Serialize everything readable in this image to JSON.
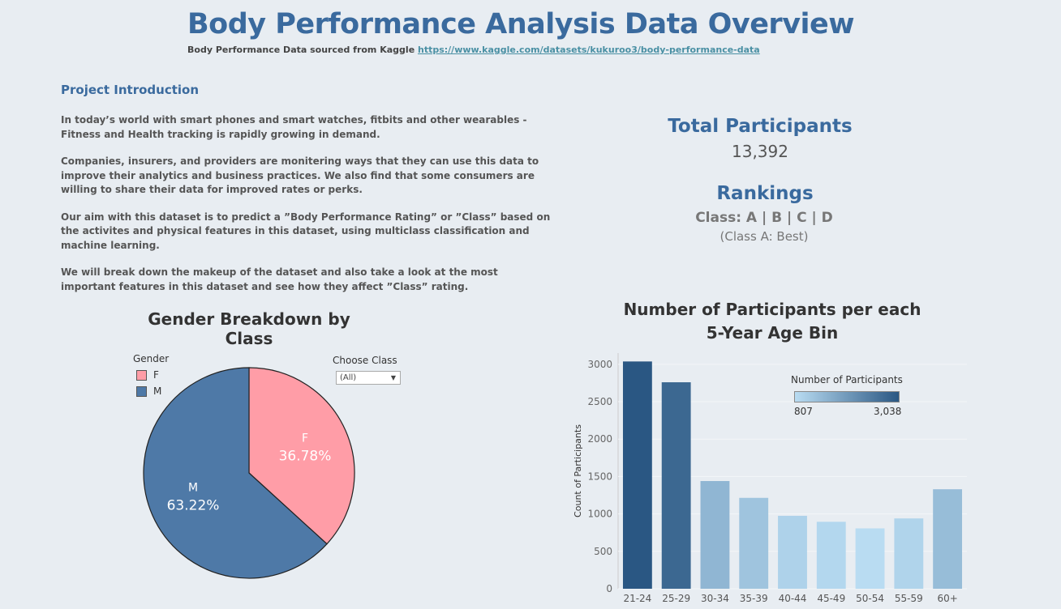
{
  "header": {
    "title": "Body Performance Analysis Data Overview",
    "source_prefix": "Body Performance Data sourced from Kaggle ",
    "source_link": "https://www.kaggle.com/datasets/kukuroo3/body-performance-data"
  },
  "intro": {
    "heading": "Project Introduction",
    "paragraphs": [
      "In today’s world with smart phones and smart watches, fitbits and other wearables - Fitness and Health tracking is rapidly growing in demand.",
      "Companies, insurers, and providers are monitering ways that they can use this data to improve their analytics and business practices. We also find that some consumers are willing to share their data for improved rates or perks.",
      "Our aim with this dataset is to predict a ”Body Performance Rating” or ”Class” based on the activites and physical features in this dataset, using multiclass classification and machine learning.",
      "We will break down the makeup of the dataset and also take a look at the most important features in this dataset and see how they affect ”Class” rating."
    ]
  },
  "kpi": {
    "total_title": "Total Participants",
    "total_value": "13,392",
    "rank_title": "Rankings",
    "rank_classes": "Class: A | B | C | D",
    "rank_note": "(Class A: Best)"
  },
  "filter": {
    "label": "Choose Class",
    "selected": "(All)"
  },
  "colors": {
    "female": "#ff9da7",
    "male": "#4e79a7",
    "title_blue": "#3a6a9e",
    "bar_low": "#b9dcf2",
    "bar_high": "#2a5783"
  },
  "chart_data": [
    {
      "type": "pie",
      "title": "Gender Breakdown by Class",
      "legend_title": "Gender",
      "legend_placement": "top-left",
      "slices": [
        {
          "label": "F",
          "value": 36.78,
          "display": "36.78%"
        },
        {
          "label": "M",
          "value": 63.22,
          "display": "63.22%"
        }
      ]
    },
    {
      "type": "bar",
      "title_lines": [
        "Number of Participants per each",
        "5-Year Age Bin"
      ],
      "xlabel": "",
      "ylabel": "Count of Participants",
      "ylim": [
        0,
        3150
      ],
      "yticks": [
        0,
        500,
        1000,
        1500,
        2000,
        2500,
        3000
      ],
      "grid": true,
      "categories": [
        "21-24",
        "25-29",
        "30-34",
        "35-39",
        "40-44",
        "45-49",
        "50-54",
        "55-59",
        "60+"
      ],
      "values": [
        3038,
        2760,
        1440,
        1215,
        975,
        895,
        807,
        940,
        1330
      ],
      "color_legend": {
        "title": "Number of Participants",
        "min_label": "807",
        "max_label": "3,038",
        "min": 807,
        "max": 3038
      }
    }
  ]
}
